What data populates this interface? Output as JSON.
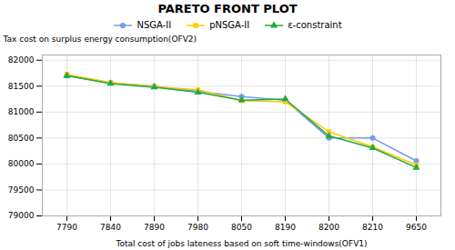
{
  "chart_data": {
    "type": "line",
    "title": "PARETO FRONT PLOT",
    "xlabel": "Total cost of jobs lateness based on soft time-windows(OFV1)",
    "ylabel": "Tax cost on surplus energy consumption(OFV2)",
    "categories": [
      "7790",
      "7840",
      "7890",
      "7980",
      "8050",
      "8190",
      "8200",
      "8210",
      "9650"
    ],
    "series": [
      {
        "name": "NSGA-II",
        "color": "#7799ee",
        "marker": "circle",
        "values": [
          81700,
          81560,
          81500,
          81400,
          81300,
          81230,
          80500,
          80500,
          80060
        ]
      },
      {
        "name": "pNSGA-II",
        "color": "#ffcc00",
        "marker": "square",
        "values": [
          81730,
          81570,
          81490,
          81430,
          81220,
          81200,
          80620,
          80330,
          79980
        ]
      },
      {
        "name": "ε-constraint",
        "color": "#22aa44",
        "marker": "triangle",
        "values": [
          81700,
          81550,
          81480,
          81380,
          81230,
          81250,
          80540,
          80310,
          79930
        ]
      }
    ],
    "ylim": [
      79000,
      82100
    ],
    "yticks": [
      79000,
      79500,
      80000,
      80500,
      81000,
      81500,
      82000
    ],
    "grid": true,
    "legend": "right"
  }
}
